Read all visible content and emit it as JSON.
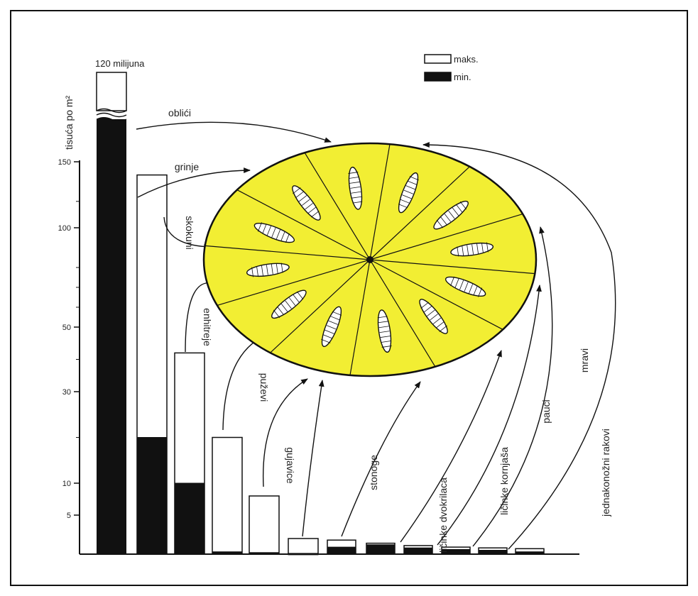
{
  "chart_data": {
    "type": "bar",
    "ylabel": "tisuća po m²",
    "y_tick_labels": [
      "150",
      "100",
      "50",
      "30",
      "10",
      "5"
    ],
    "y_scale": "non-linear (broken axis)",
    "legend": {
      "max_label": "maks.",
      "min_label": "min.",
      "placement": "top-right"
    },
    "first_bar_top_label": "120 milijuna",
    "categories": [
      "oblići",
      "grinje",
      "skokuni",
      "enhitreje",
      "puževi",
      "gujavice",
      "stonoge",
      "ličinke dvokrilaca",
      "ličinke kornjaša",
      "pauci",
      "mravi",
      "jednakonožni rakovi"
    ],
    "series": [
      {
        "name": "maks.",
        "values": [
          120000,
          140,
          42,
          20,
          8,
          2,
          1.8,
          1.4,
          1.1,
          0.9,
          0.8,
          0.7
        ]
      },
      {
        "name": "min.",
        "values": [
          120000,
          20,
          10,
          0.3,
          0.2,
          0.1,
          0.9,
          1.2,
          0.8,
          0.6,
          0.5,
          0.3
        ]
      }
    ],
    "center_disc_color": "#f2ee33"
  }
}
